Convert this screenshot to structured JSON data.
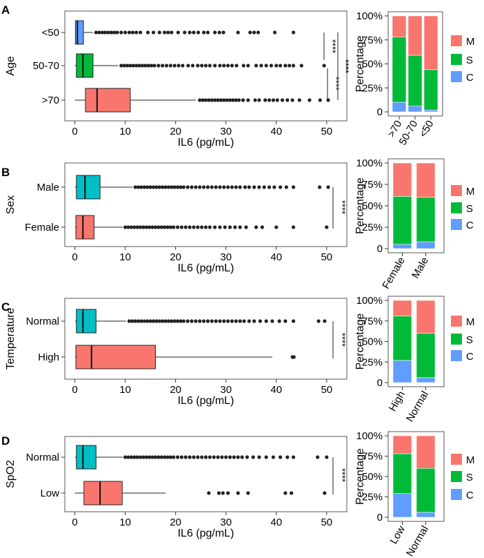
{
  "colors": {
    "M": "#F8766D",
    "S": "#00BA38",
    "C": "#619CFF",
    "teal": "#00BFC4",
    "green": "#00BA38",
    "blue": "#619CFF",
    "salmon": "#F8766D"
  },
  "chart_data": [
    {
      "type": "boxplot",
      "panel": "A",
      "ylabel": "Age",
      "xlabel": "IL6 (pg/mL)",
      "xlim": [
        -2,
        54
      ],
      "xticks": [
        0,
        10,
        20,
        30,
        40,
        50
      ],
      "significance": [
        "****",
        "****",
        "****"
      ],
      "groups": [
        {
          "name": "<50",
          "color": "blue",
          "q1": 0.1,
          "median": 0.5,
          "q3": 1.7,
          "whisker_low": 0,
          "whisker_high": 3.6,
          "outliers": [
            4.2,
            4.8,
            5.4,
            6,
            6.6,
            7.2,
            7.8,
            8.4,
            9.2,
            10,
            10.8,
            11.5,
            12.2,
            13,
            14.5,
            15.6,
            16.8,
            17.8,
            18.5,
            19.2,
            20.5,
            21.8,
            22.8,
            23.6,
            24.5,
            25.6,
            26.4,
            27.8,
            28.7,
            29.5,
            32.4,
            34.8,
            35.6,
            36.4,
            39.7,
            43.4
          ]
        },
        {
          "name": "50-70",
          "color": "green",
          "q1": 0.3,
          "median": 1.6,
          "q3": 3.6,
          "whisker_low": 0,
          "whisker_high": 8.6,
          "outliers": [
            9.2,
            9.8,
            10.4,
            11,
            11.6,
            12.2,
            12.8,
            13.4,
            14,
            14.6,
            15.2,
            15.8,
            16.6,
            17.4,
            18.2,
            19,
            19.8,
            20.6,
            21.4,
            22.5,
            23.4,
            24.4,
            25.2,
            26,
            26.8,
            27.8,
            28.8,
            29.6,
            30.4,
            31.2,
            32.1,
            33.5,
            34.4,
            36,
            37,
            38,
            39,
            40,
            40.8,
            41.8,
            42.6,
            43.4,
            45,
            49.5
          ]
        },
        {
          "name": ">70",
          "color": "salmon",
          "q1": 2.1,
          "median": 4.4,
          "q3": 11,
          "whisker_low": 0,
          "whisker_high": 24,
          "outliers": [
            24.8,
            25.4,
            26,
            26.6,
            27.2,
            27.8,
            28.4,
            29,
            29.6,
            30.2,
            30.8,
            31.4,
            32,
            32.6,
            33.4,
            34.4,
            35.8,
            36.6,
            37.8,
            38.6,
            39.4,
            40.2,
            41.2,
            42.2,
            43.2,
            44.6,
            46.6,
            48.7,
            50.3
          ]
        }
      ]
    },
    {
      "type": "bar",
      "panel": "A-stacked",
      "stacked": true,
      "percent": true,
      "ylabel": "Percentage",
      "yticks": [
        "0",
        "25%",
        "50%",
        "75%",
        "100%"
      ],
      "categories": [
        ">70",
        "50-70",
        "<50"
      ],
      "series": [
        {
          "name": "C",
          "values": [
            10,
            6,
            2
          ]
        },
        {
          "name": "S",
          "values": [
            68,
            53,
            42
          ]
        },
        {
          "name": "M",
          "values": [
            22,
            41,
            56
          ]
        }
      ],
      "legend": [
        "M",
        "S",
        "C"
      ]
    },
    {
      "type": "boxplot",
      "panel": "B",
      "ylabel": "Sex",
      "xlabel": "IL6 (pg/mL)",
      "xlim": [
        -2,
        54
      ],
      "xticks": [
        0,
        10,
        20,
        30,
        40,
        50
      ],
      "significance": [
        "****"
      ],
      "groups": [
        {
          "name": "Male",
          "color": "teal",
          "q1": 0.3,
          "median": 2,
          "q3": 5,
          "whisker_low": 0,
          "whisker_high": 11.5,
          "outliers": [
            12,
            12.6,
            13.2,
            13.8,
            14.4,
            15,
            15.6,
            16.2,
            16.8,
            17.4,
            18,
            18.6,
            19.2,
            19.8,
            20.4,
            21,
            21.6,
            22.4,
            23.2,
            24,
            24.8,
            25.6,
            26.4,
            27.2,
            28,
            28.8,
            29.6,
            30.4,
            31.2,
            32,
            32.8,
            33.8,
            34.6,
            35.6,
            36.6,
            37.6,
            38.6,
            39.6,
            40.8,
            42,
            43.4,
            48.6,
            50.3
          ]
        },
        {
          "name": "Female",
          "color": "salmon",
          "q1": 0.2,
          "median": 1.6,
          "q3": 3.8,
          "whisker_low": 0,
          "whisker_high": 9.5,
          "outliers": [
            10,
            10.6,
            11.2,
            11.8,
            12.4,
            13,
            13.6,
            14.2,
            14.8,
            15.4,
            16,
            16.6,
            17.2,
            17.8,
            18.4,
            19,
            19.6,
            20.4,
            21.2,
            22,
            22.8,
            23.6,
            24.4,
            25.2,
            26,
            26.8,
            27.8,
            28.8,
            29.8,
            30.8,
            31.8,
            32.8,
            34,
            36,
            37.2,
            40,
            43.4,
            50
          ]
        }
      ]
    },
    {
      "type": "bar",
      "panel": "B-stacked",
      "stacked": true,
      "percent": true,
      "ylabel": "Percentage",
      "yticks": [
        "0",
        "25%",
        "50%",
        "75%",
        "100%"
      ],
      "categories": [
        "Female",
        "Male"
      ],
      "series": [
        {
          "name": "C",
          "values": [
            5,
            8
          ]
        },
        {
          "name": "S",
          "values": [
            56,
            52
          ]
        },
        {
          "name": "M",
          "values": [
            39,
            40
          ]
        }
      ],
      "legend": [
        "M",
        "S",
        "C"
      ]
    },
    {
      "type": "boxplot",
      "panel": "C",
      "ylabel": "Temperature",
      "xlabel": "IL6 (pg/mL)",
      "xlim": [
        -2,
        54
      ],
      "xticks": [
        0,
        10,
        20,
        30,
        40,
        50
      ],
      "significance": [
        "****"
      ],
      "groups": [
        {
          "name": "Normal",
          "color": "teal",
          "q1": 0.3,
          "median": 1.6,
          "q3": 4.2,
          "whisker_low": 0,
          "whisker_high": 10.2,
          "outliers": [
            10.8,
            11.4,
            12,
            12.6,
            13.2,
            13.8,
            14.4,
            15,
            15.6,
            16.2,
            16.8,
            17.4,
            18,
            18.6,
            19.2,
            19.8,
            20.4,
            21,
            21.6,
            22.4,
            23.2,
            24,
            24.8,
            25.6,
            26.4,
            27.2,
            28,
            28.8,
            29.6,
            30.4,
            31.2,
            32,
            32.8,
            33.6,
            34.6,
            35.6,
            36.8,
            38,
            39.2,
            40.6,
            41.8,
            43.4,
            48.4,
            49.6
          ]
        },
        {
          "name": "High",
          "color": "salmon",
          "q1": 0.2,
          "median": 3.3,
          "q3": 16,
          "whisker_low": 0,
          "whisker_high": 39.2,
          "outliers": [
            43.2,
            43.5
          ]
        }
      ]
    },
    {
      "type": "bar",
      "panel": "C-stacked",
      "stacked": true,
      "percent": true,
      "ylabel": "Percentage",
      "yticks": [
        "0",
        "25%",
        "50%",
        "75%",
        "100%"
      ],
      "categories": [
        "High",
        "Normal"
      ],
      "series": [
        {
          "name": "C",
          "values": [
            27,
            6
          ]
        },
        {
          "name": "S",
          "values": [
            54,
            54
          ]
        },
        {
          "name": "M",
          "values": [
            19,
            40
          ]
        }
      ],
      "legend": [
        "M",
        "S",
        "C"
      ]
    },
    {
      "type": "boxplot",
      "panel": "D",
      "ylabel": "SpO2",
      "xlabel": "IL6 (pg/mL)",
      "xlim": [
        -2,
        54
      ],
      "xticks": [
        0,
        10,
        20,
        30,
        40,
        50
      ],
      "significance": [
        "****"
      ],
      "groups": [
        {
          "name": "Normal",
          "color": "teal",
          "q1": 0.3,
          "median": 1.6,
          "q3": 4.2,
          "whisker_low": 0,
          "whisker_high": 9.5,
          "outliers": [
            10,
            10.6,
            11.2,
            11.8,
            12.4,
            13,
            13.6,
            14.2,
            14.8,
            15.4,
            16,
            16.6,
            17.2,
            17.8,
            18.4,
            19,
            19.6,
            20.4,
            21.2,
            22,
            22.8,
            23.6,
            24.4,
            25.2,
            26,
            26.8,
            27.6,
            28.4,
            29.2,
            30,
            30.8,
            31.6,
            32.4,
            33.2,
            34.2,
            35.4,
            36.6,
            38,
            39.4,
            40.8,
            42.2,
            43.4,
            48.2,
            50
          ]
        },
        {
          "name": "Low",
          "color": "salmon",
          "q1": 1.8,
          "median": 5,
          "q3": 9.4,
          "whisker_low": 0,
          "whisker_high": 18,
          "outliers": [
            26.6,
            28.6,
            29.4,
            30.4,
            32.4,
            34.4,
            41.8,
            43,
            49.6
          ]
        }
      ]
    },
    {
      "type": "bar",
      "panel": "D-stacked",
      "stacked": true,
      "percent": true,
      "ylabel": "Percentage",
      "yticks": [
        "0",
        "25%",
        "50%",
        "75%",
        "100%"
      ],
      "categories": [
        "Low",
        "Normal"
      ],
      "series": [
        {
          "name": "C",
          "values": [
            29,
            6
          ]
        },
        {
          "name": "S",
          "values": [
            49,
            54
          ]
        },
        {
          "name": "M",
          "values": [
            22,
            40
          ]
        }
      ],
      "legend": [
        "M",
        "S",
        "C"
      ]
    }
  ]
}
